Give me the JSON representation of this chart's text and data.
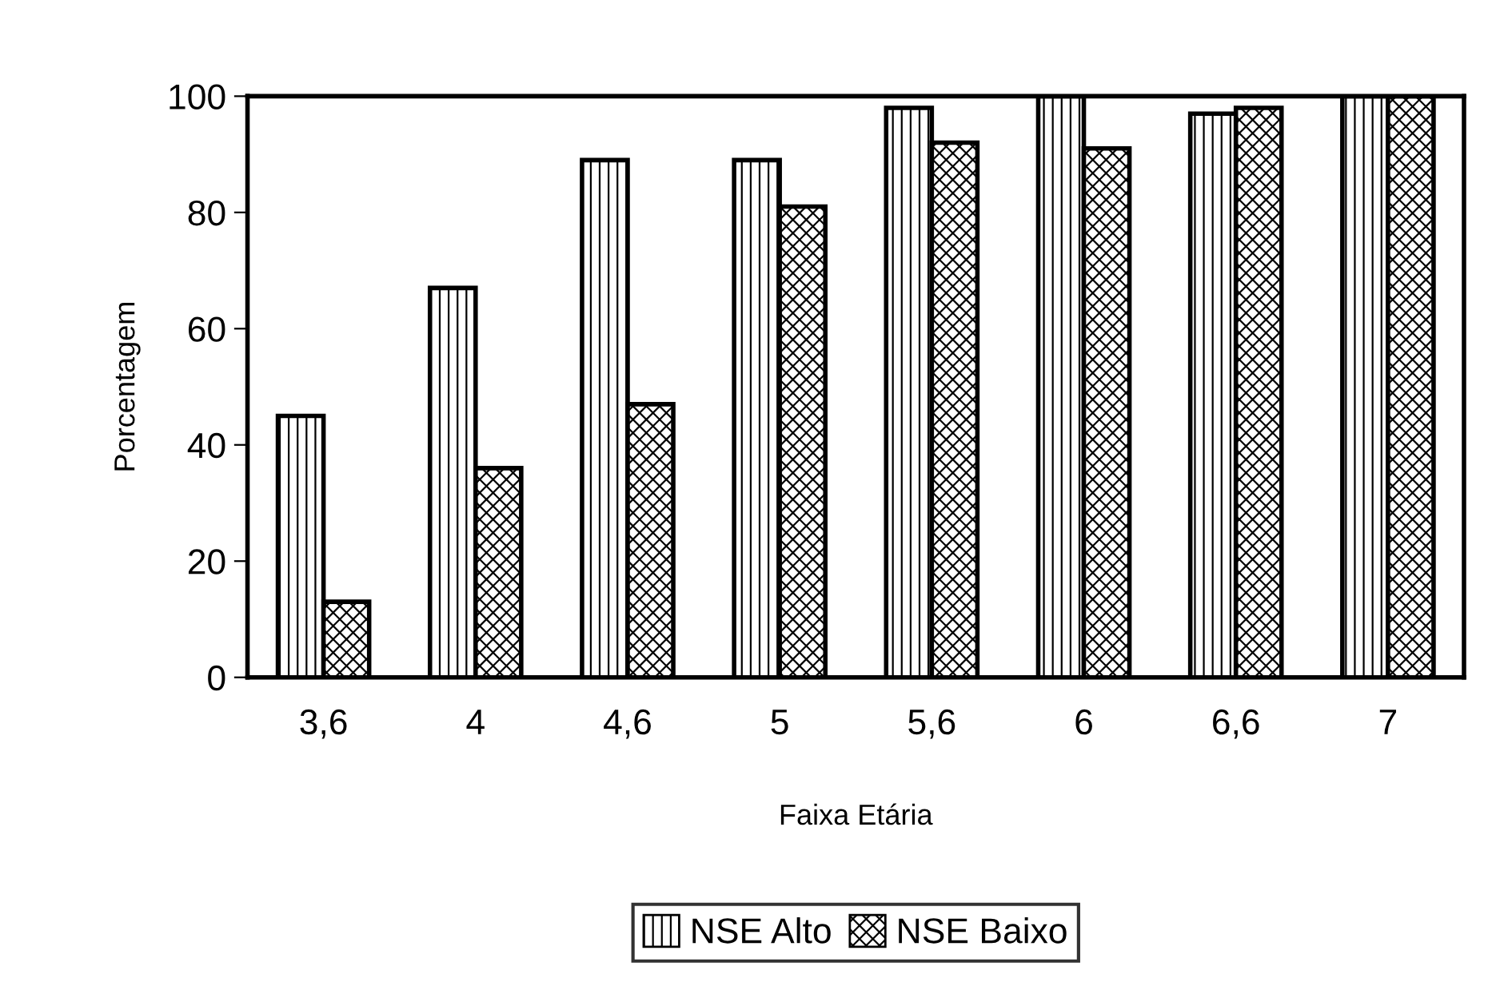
{
  "chart_data": {
    "type": "bar",
    "xlabel": "Faixa Etária",
    "ylabel": "Porcentagem",
    "categories": [
      "3,6",
      "4",
      "4,6",
      "5",
      "5,6",
      "6",
      "6,6",
      "7"
    ],
    "series": [
      {
        "name": "NSE Alto",
        "color": "#000000",
        "values": [
          45,
          67,
          89,
          89,
          98,
          100,
          97,
          100
        ]
      },
      {
        "name": "NSE Baixo",
        "color": "#000000",
        "values": [
          13,
          36,
          47,
          81,
          92,
          91,
          98,
          100
        ]
      }
    ],
    "ylim": [
      0,
      100
    ],
    "yticks": [
      0,
      20,
      40,
      60,
      80,
      100
    ],
    "grid": false,
    "legend": "bottom"
  }
}
